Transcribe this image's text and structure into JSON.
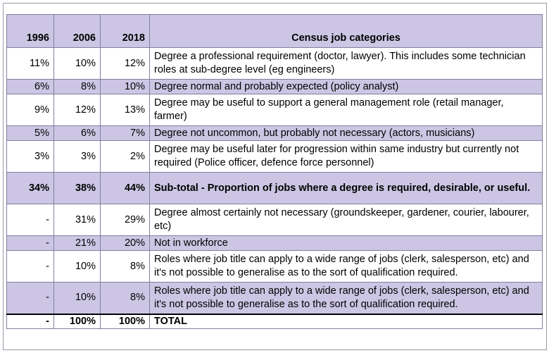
{
  "header": {
    "col1": "1996",
    "col2": "2006",
    "col3": "2018",
    "col4": "Census job categories"
  },
  "rows": [
    {
      "y1996": "11%",
      "y2006": "10%",
      "y2018": "12%",
      "category": "Degree a professional requirement (doctor, lawyer). This includes some technician roles at sub-degree level (eg engineers)"
    },
    {
      "y1996": "6%",
      "y2006": "8%",
      "y2018": "10%",
      "category": "Degree normal and probably expected (policy analyst)"
    },
    {
      "y1996": "9%",
      "y2006": "12%",
      "y2018": "13%",
      "category": "Degree may be useful to support a general management role (retail manager, farmer)"
    },
    {
      "y1996": "5%",
      "y2006": "6%",
      "y2018": "7%",
      "category": "Degree not uncommon, but probably not necessary (actors, musicians)"
    },
    {
      "y1996": "3%",
      "y2006": "3%",
      "y2018": "2%",
      "category": "Degree may be useful later for progression within same industry but currently not required (Police officer, defence force personnel)"
    },
    {
      "y1996": "34%",
      "y2006": "38%",
      "y2018": "44%",
      "category": "Sub-total - Proportion of jobs where a degree is required, desirable, or useful."
    },
    {
      "y1996": "-",
      "y2006": "31%",
      "y2018": "29%",
      "category": "Degree almost certainly not necessary (groundskeeper, gardener, courier, labourer, etc)"
    },
    {
      "y1996": "-",
      "y2006": "21%",
      "y2018": "20%",
      "category": "Not in workforce"
    },
    {
      "y1996": "-",
      "y2006": "10%",
      "y2018": "8%",
      "category": "Roles where job title can apply to a wide range of jobs (clerk, salesperson, etc) and it's not possible to generalise as to the sort of qualification required."
    },
    {
      "y1996": "-",
      "y2006": "10%",
      "y2018": "8%",
      "category": "Roles where job title can apply to a wide range of jobs (clerk, salesperson, etc) and it's not possible to generalise as to the sort of qualification required."
    },
    {
      "y1996": "-",
      "y2006": "100%",
      "y2018": "100%",
      "category": "TOTAL"
    }
  ]
}
